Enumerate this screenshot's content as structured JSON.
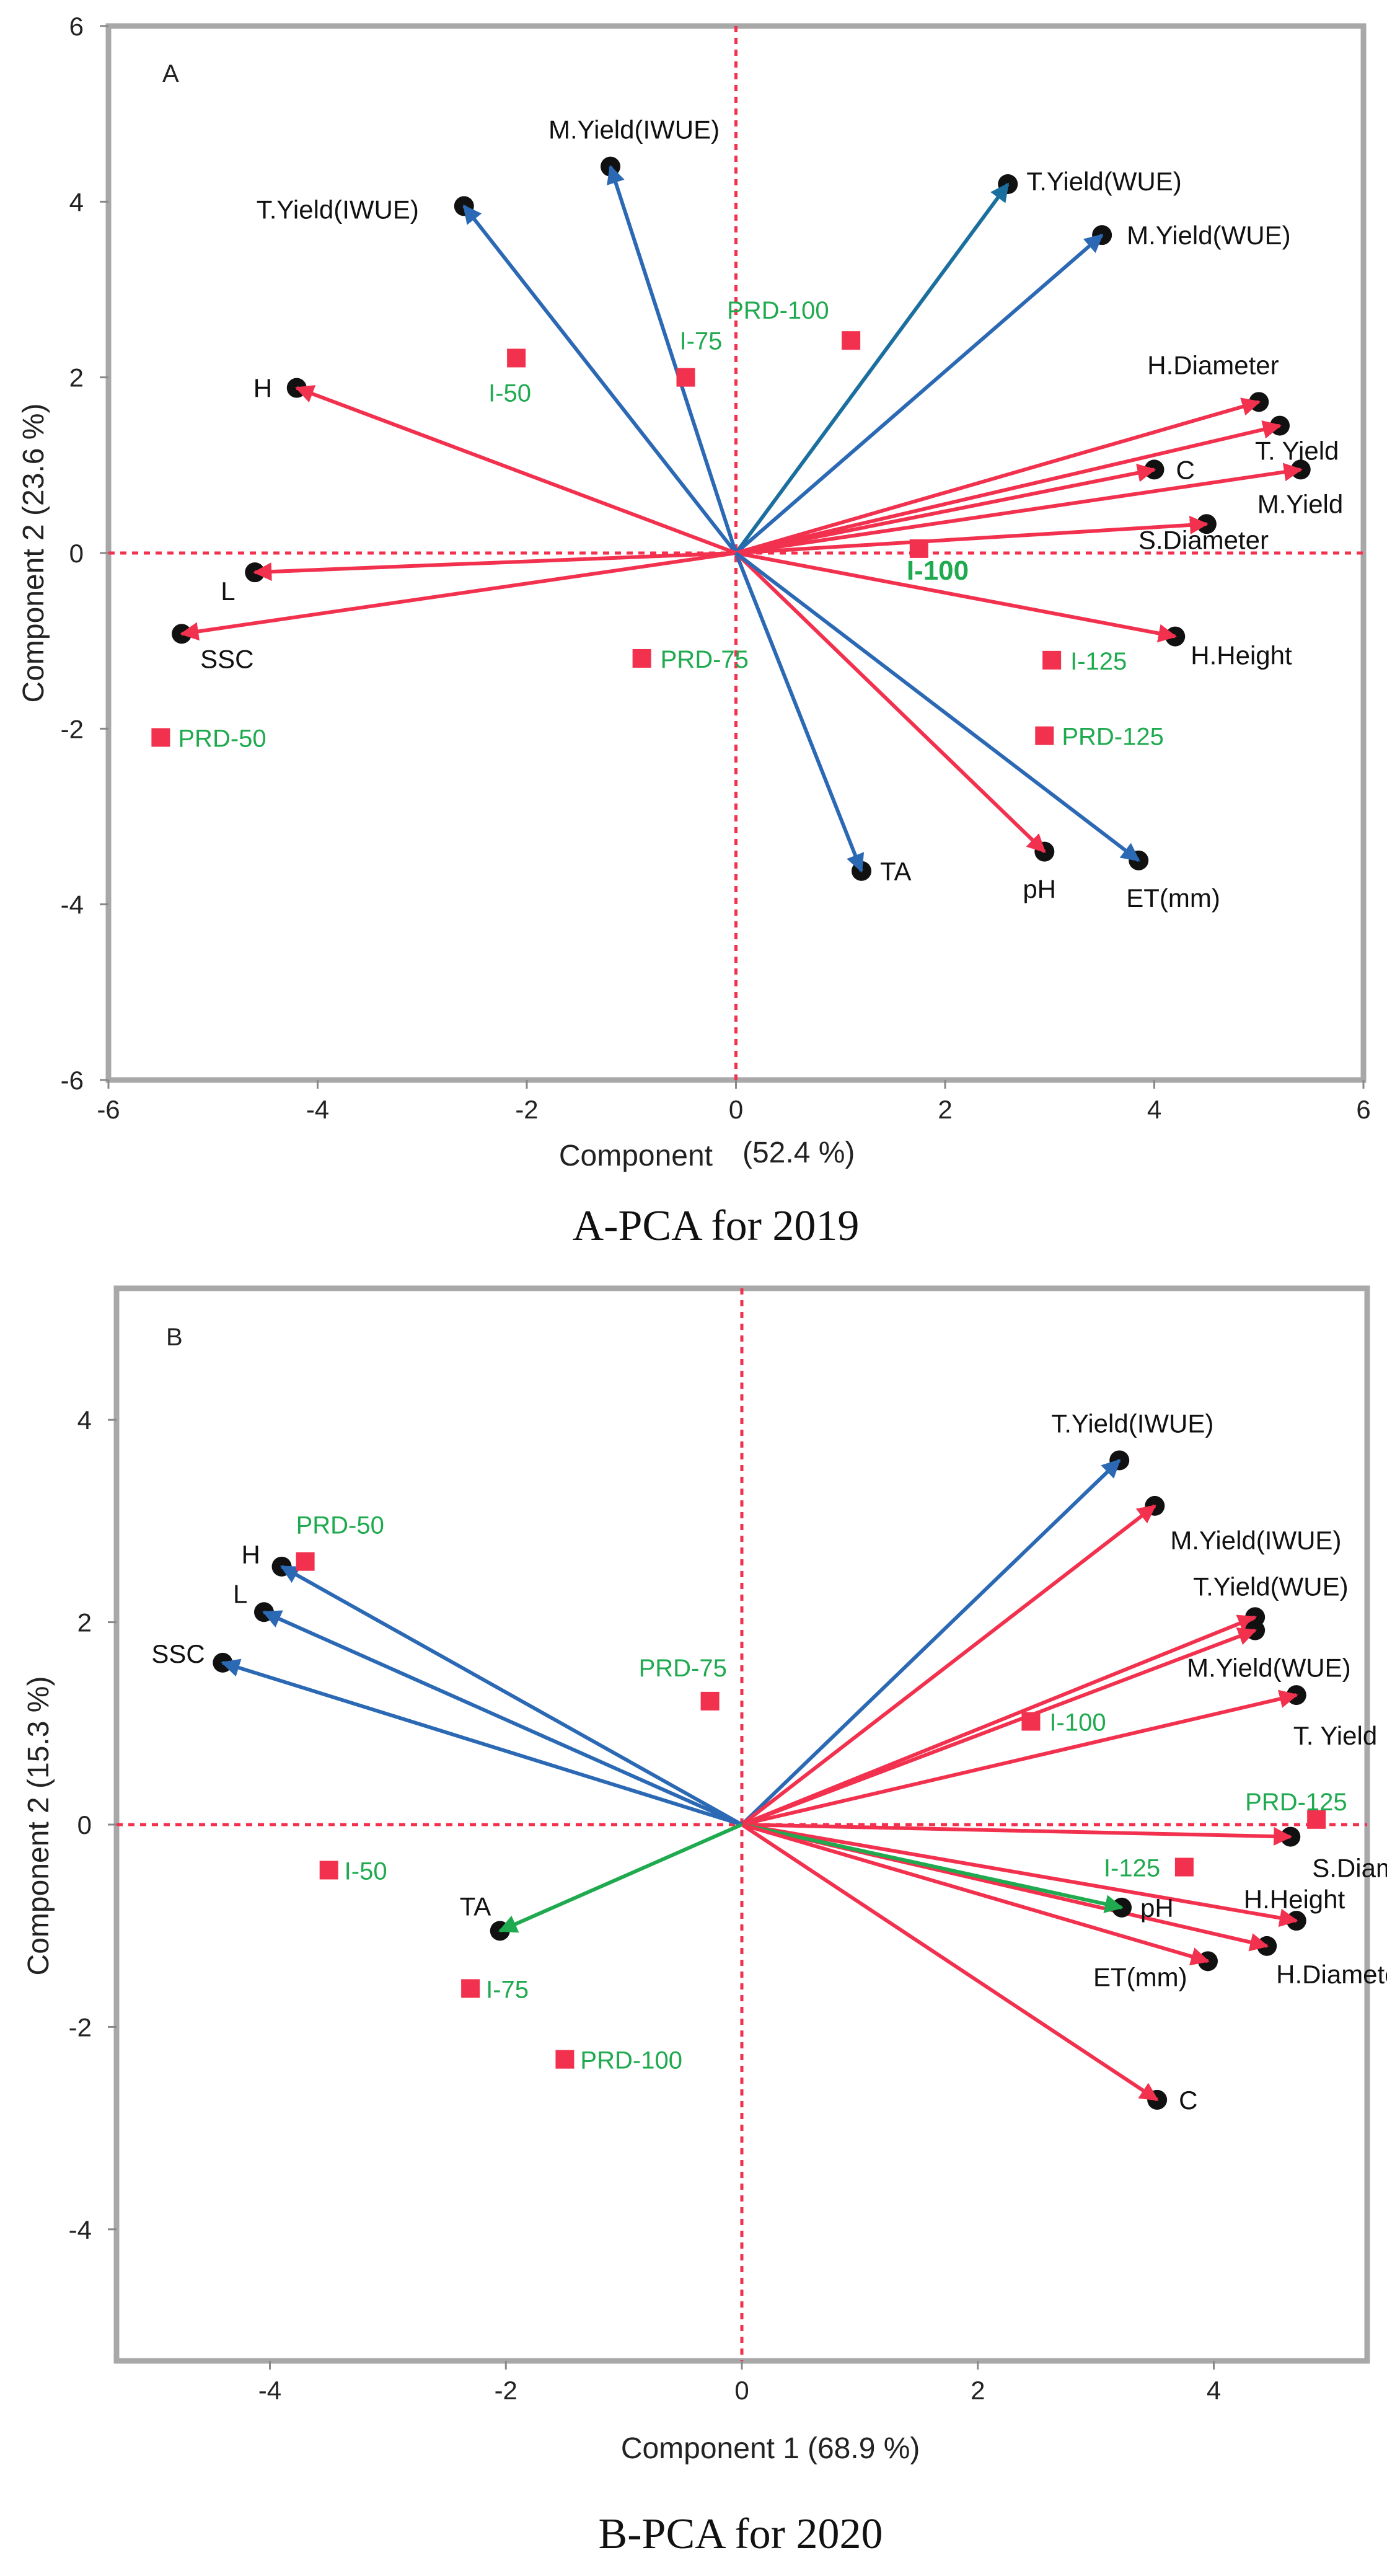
{
  "colors": {
    "red": "#f2314f",
    "blue": "#2c69b5",
    "teal": "#1b6f9e",
    "green": "#1faa4f",
    "frame": "#a8a8a8",
    "sample": "#f2314f",
    "ref": "#f2314f"
  },
  "chart_data": [
    {
      "type": "scatter",
      "panel_label": "A",
      "title": "A-PCA for 2019",
      "xlabel": "Component",
      "xlabel_pct": "(52.4 %)",
      "ylabel": "Component 2  (23.6 %)",
      "xlim": [
        -6,
        6
      ],
      "ylim": [
        -6,
        6
      ],
      "xticks": [
        -6,
        -4,
        -2,
        0,
        2,
        4,
        6
      ],
      "yticks": [
        -6,
        -4,
        -2,
        0,
        2,
        4,
        6
      ],
      "variables": [
        {
          "name": "M.Yield(IWUE)",
          "x": -1.2,
          "y": 4.4,
          "color": "blue"
        },
        {
          "name": "T.Yield(IWUE)",
          "x": -2.6,
          "y": 3.95,
          "color": "blue"
        },
        {
          "name": "T.Yield(WUE)",
          "x": 2.6,
          "y": 4.2,
          "color": "teal"
        },
        {
          "name": "M.Yield(WUE)",
          "x": 3.5,
          "y": 3.62,
          "color": "blue"
        },
        {
          "name": "H",
          "x": -4.2,
          "y": 1.88,
          "color": "red"
        },
        {
          "name": "L",
          "x": -4.6,
          "y": -0.22,
          "color": "red"
        },
        {
          "name": "SSC",
          "x": -5.3,
          "y": -0.92,
          "color": "red"
        },
        {
          "name": "H.Diameter",
          "x": 5.0,
          "y": 1.72,
          "color": "red"
        },
        {
          "name": "T. Yield",
          "x": 5.2,
          "y": 1.45,
          "color": "red"
        },
        {
          "name": "C",
          "x": 4.0,
          "y": 0.95,
          "color": "red"
        },
        {
          "name": "M.Yield",
          "x": 5.4,
          "y": 0.95,
          "color": "red"
        },
        {
          "name": "S.Diameter",
          "x": 4.5,
          "y": 0.33,
          "color": "red"
        },
        {
          "name": "H.Height",
          "x": 4.2,
          "y": -0.95,
          "color": "red"
        },
        {
          "name": "TA",
          "x": 1.2,
          "y": -3.62,
          "color": "blue"
        },
        {
          "name": "pH",
          "x": 2.95,
          "y": -3.4,
          "color": "red"
        },
        {
          "name": "ET(mm)",
          "x": 3.85,
          "y": -3.5,
          "color": "blue"
        }
      ],
      "samples": [
        {
          "name": "PRD-100",
          "x": 1.1,
          "y": 2.42
        },
        {
          "name": "I-75",
          "x": -0.48,
          "y": 2.0
        },
        {
          "name": "I-50",
          "x": -2.1,
          "y": 2.22
        },
        {
          "name": "I-100",
          "x": 1.75,
          "y": 0.05
        },
        {
          "name": "PRD-75",
          "x": -0.9,
          "y": -1.2
        },
        {
          "name": "I-125",
          "x": 3.02,
          "y": -1.22
        },
        {
          "name": "PRD-125",
          "x": 2.95,
          "y": -2.08
        },
        {
          "name": "PRD-50",
          "x": -5.5,
          "y": -2.1
        }
      ]
    },
    {
      "type": "scatter",
      "panel_label": "B",
      "title": "B-PCA for 2020",
      "xlabel": "Component 1",
      "xlabel_pct": "(68.9 %)",
      "ylabel": "Component 2  (15.3 %)",
      "xlim": [
        -5.3,
        5.3
      ],
      "ylim": [
        -5.3,
        5.3
      ],
      "xticks": [
        -4,
        -2,
        0,
        2,
        4
      ],
      "yticks": [
        -4,
        -2,
        0,
        2,
        4
      ],
      "variables": [
        {
          "name": "T.Yield(IWUE)",
          "x": 3.2,
          "y": 3.6,
          "color": "blue"
        },
        {
          "name": "M.Yield(IWUE)",
          "x": 3.5,
          "y": 3.15,
          "color": "red"
        },
        {
          "name": "T.Yield(WUE)",
          "x": 4.35,
          "y": 2.05,
          "color": "red"
        },
        {
          "name": "M.Yield(WUE)",
          "x": 4.35,
          "y": 1.92,
          "color": "red"
        },
        {
          "name": "T. Yield",
          "x": 4.7,
          "y": 1.28,
          "color": "red"
        },
        {
          "name": "S.Diameter",
          "x": 4.65,
          "y": -0.12,
          "color": "red"
        },
        {
          "name": "H.Height",
          "x": 4.7,
          "y": -0.95,
          "color": "red"
        },
        {
          "name": "H.Diameter",
          "x": 4.45,
          "y": -1.2,
          "color": "red"
        },
        {
          "name": "pH",
          "x": 3.22,
          "y": -0.82,
          "color": "green"
        },
        {
          "name": "ET(mm)",
          "x": 3.95,
          "y": -1.35,
          "color": "red"
        },
        {
          "name": "C",
          "x": 3.52,
          "y": -2.72,
          "color": "red"
        },
        {
          "name": "H",
          "x": -3.9,
          "y": 2.55,
          "color": "blue"
        },
        {
          "name": "L",
          "x": -4.05,
          "y": 2.1,
          "color": "blue"
        },
        {
          "name": "SSC",
          "x": -4.4,
          "y": 1.6,
          "color": "blue"
        },
        {
          "name": "TA",
          "x": -2.05,
          "y": -1.05,
          "color": "green"
        }
      ],
      "samples": [
        {
          "name": "PRD-50",
          "x": -3.7,
          "y": 2.6
        },
        {
          "name": "PRD-75",
          "x": -0.27,
          "y": 1.22
        },
        {
          "name": "I-100",
          "x": 2.45,
          "y": 1.02
        },
        {
          "name": "PRD-125",
          "x": 4.87,
          "y": 0.05
        },
        {
          "name": "I-125",
          "x": 3.75,
          "y": -0.42
        },
        {
          "name": "I-50",
          "x": -3.5,
          "y": -0.45
        },
        {
          "name": "I-75",
          "x": -2.3,
          "y": -1.62
        },
        {
          "name": "PRD-100",
          "x": -1.5,
          "y": -2.32
        }
      ]
    }
  ]
}
